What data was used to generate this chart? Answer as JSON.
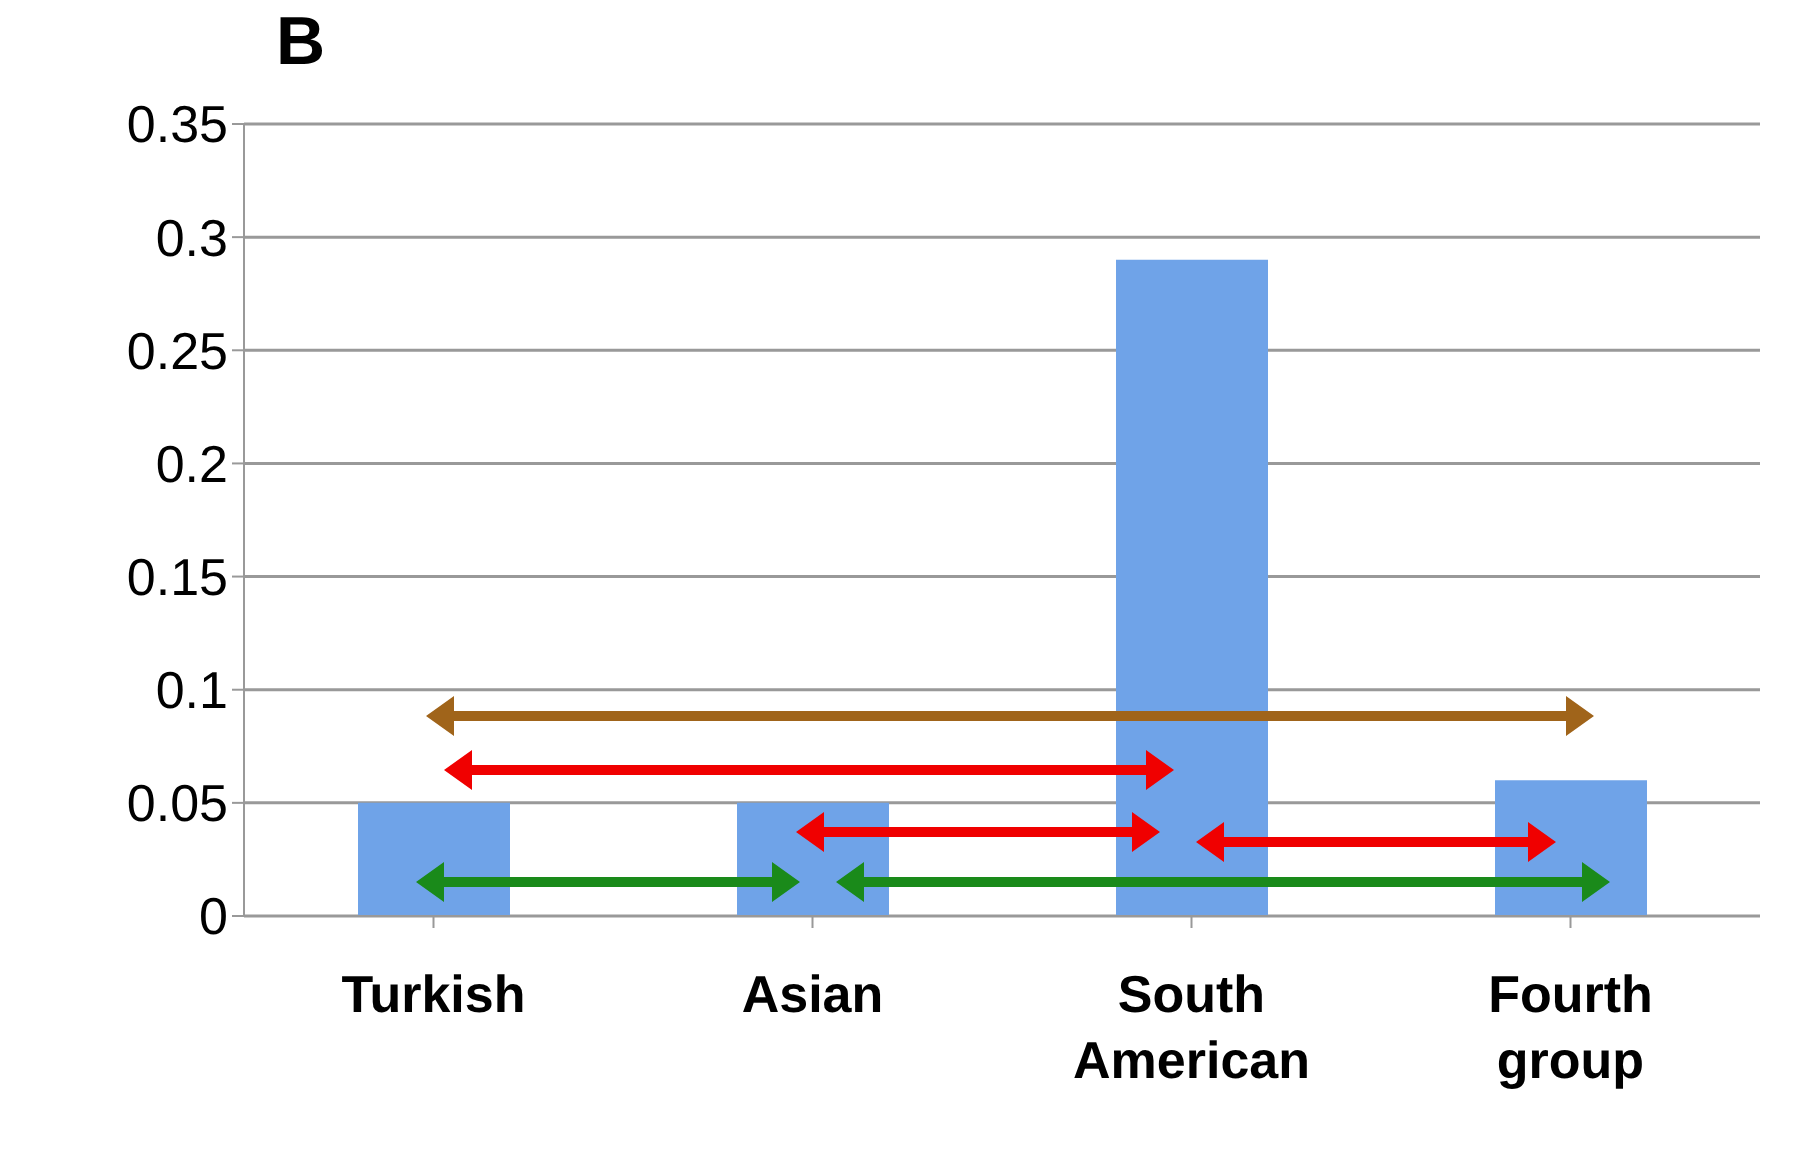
{
  "chart_data": {
    "type": "bar",
    "title": "B",
    "categories": [
      "Turkish",
      "Asian",
      "South American",
      "Fourth group"
    ],
    "values": [
      0.05,
      0.05,
      0.29,
      0.06
    ],
    "color": "#6fa3e8",
    "ylim": [
      0,
      0.35
    ],
    "yticks": [
      0,
      0.05,
      0.1,
      0.15,
      0.2,
      0.25,
      0.3,
      0.35
    ],
    "grid": "y"
  }
}
